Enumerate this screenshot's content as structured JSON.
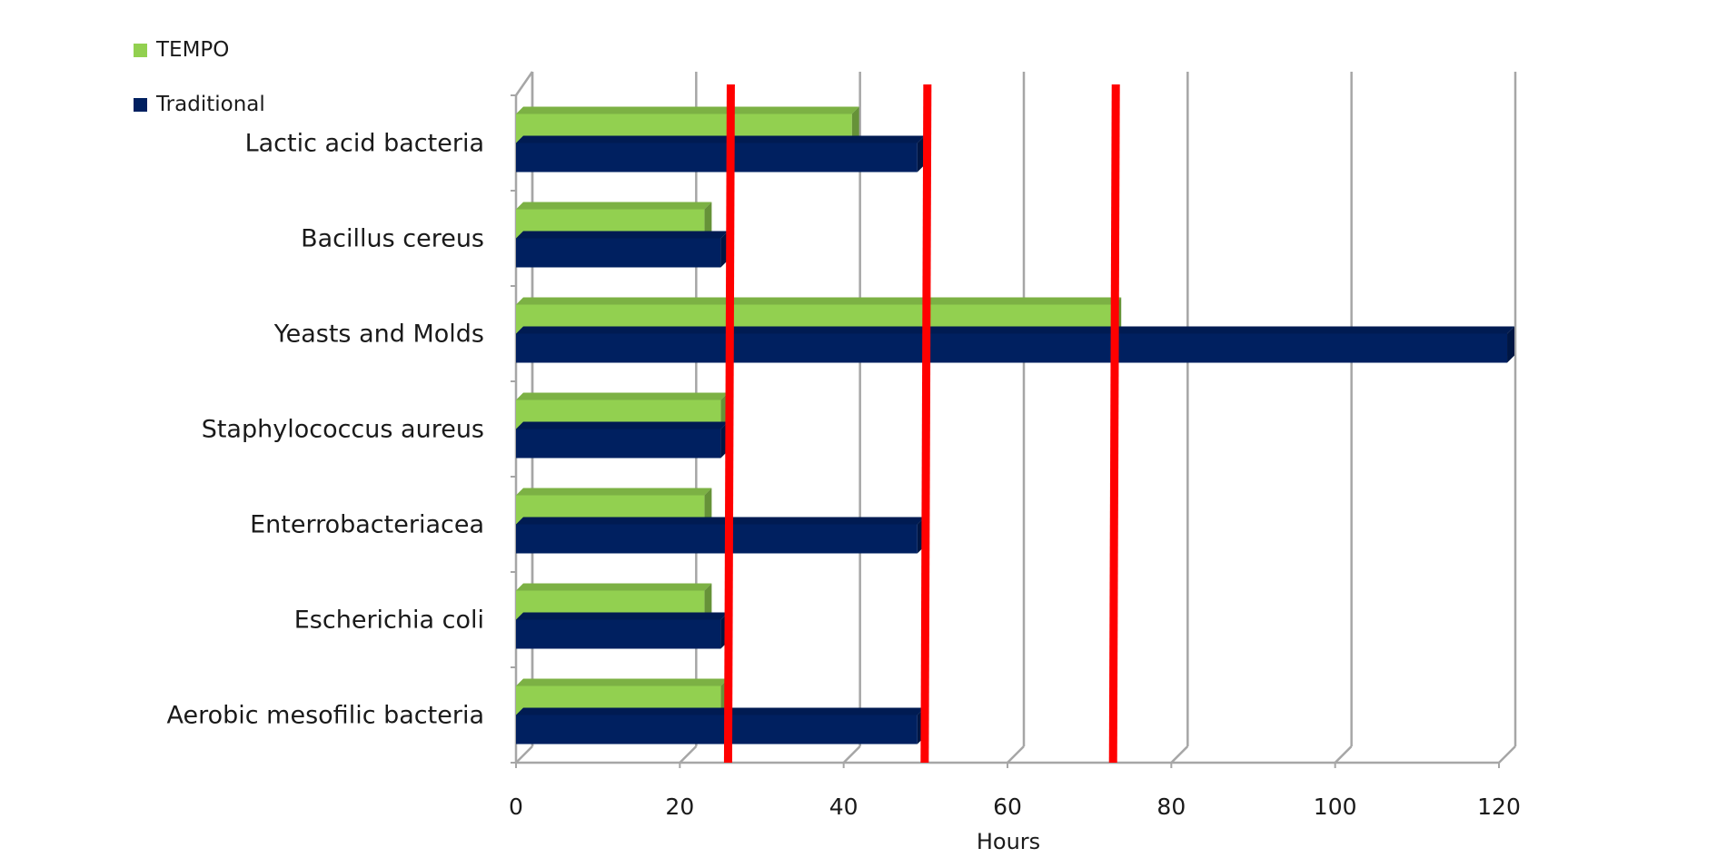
{
  "chart_data": {
    "type": "bar",
    "orientation": "horizontal",
    "categories": [
      "Lactic acid bacteria",
      "Bacillus cereus",
      "Yeasts and Molds",
      "Staphylococcus aureus",
      "Enterrobacteriacea",
      "Escherichia coli",
      "Aerobic mesofilic bacteria"
    ],
    "series": [
      {
        "name": "TEMPO",
        "color": "#92d050",
        "values": [
          41,
          23,
          73,
          25,
          23,
          23,
          25
        ]
      },
      {
        "name": "Traditional",
        "color": "#002060",
        "values": [
          49,
          25,
          121,
          25,
          49,
          25,
          49
        ]
      }
    ],
    "reference_lines": [
      {
        "value": 26,
        "color": "#ff0000"
      },
      {
        "value": 50,
        "color": "#ff0000"
      },
      {
        "value": 73,
        "color": "#ff0000"
      }
    ],
    "xlabel": "Hours",
    "xlim": [
      0,
      120
    ],
    "xticks": [
      "0",
      "20",
      "40",
      "60",
      "80",
      "100",
      "120"
    ],
    "grid": true,
    "legend_position": "top-left"
  }
}
